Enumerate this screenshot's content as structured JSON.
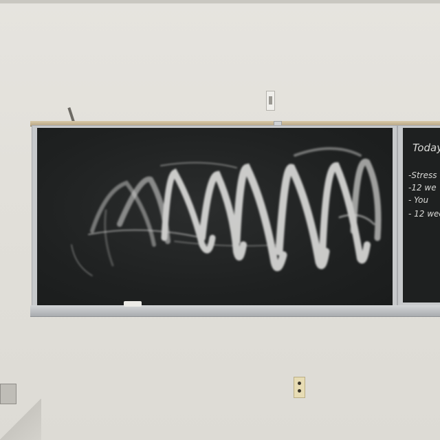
{
  "scene": {
    "wall_color": "#e2e0da",
    "board_color": "#1f2121",
    "chalk_color": "#e8e8e6"
  },
  "right_board": {
    "lines": [
      "Today",
      "-Stress",
      "-12 we",
      "- You",
      "- 12 wee"
    ]
  }
}
